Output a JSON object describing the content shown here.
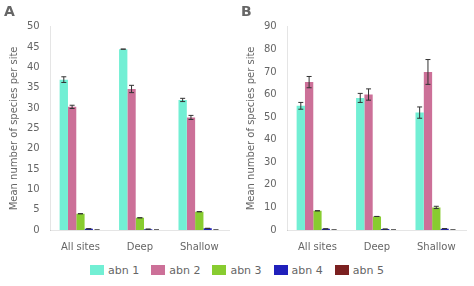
{
  "chart_data": [
    {
      "type": "bar",
      "title": "A",
      "categories": [
        "All sites",
        "Deep",
        "Shallow"
      ],
      "ylabel": "Mean number of species per site",
      "series": [
        {
          "name": "abn 1",
          "color": "#72EFD4",
          "values": [
            37.0,
            44.5,
            32.0
          ],
          "errors": [
            0.7,
            0.0,
            0.4
          ]
        },
        {
          "name": "abn 2",
          "color": "#CC7098",
          "values": [
            30.3,
            34.7,
            27.7
          ],
          "errors": [
            0.4,
            0.9,
            0.5
          ]
        },
        {
          "name": "abn 3",
          "color": "#88CC30",
          "values": [
            4.0,
            3.0,
            4.5
          ],
          "errors": [
            0.0,
            0.0,
            0.0
          ]
        },
        {
          "name": "abn 4",
          "color": "#2020BB",
          "values": [
            0.3,
            0.2,
            0.4
          ],
          "errors": [
            0.0,
            0.0,
            0.0
          ]
        },
        {
          "name": "abn 5",
          "color": "#7B2020",
          "values": [
            0.0,
            0.0,
            0.0
          ],
          "errors": [
            0.0,
            0.0,
            0.0
          ]
        }
      ],
      "ylim": [
        0,
        50
      ],
      "yticks": [
        0,
        5,
        10,
        15,
        20,
        25,
        30,
        35,
        40,
        45,
        50
      ],
      "grid": false,
      "legend": "bottom"
    },
    {
      "type": "bar",
      "title": "B",
      "categories": [
        "All sites",
        "Deep",
        "Shallow"
      ],
      "ylabel": "Mean number of species per site",
      "series": [
        {
          "name": "abn 1",
          "color": "#72EFD4",
          "values": [
            55.0,
            58.5,
            52.0
          ],
          "errors": [
            1.5,
            2.0,
            2.5
          ]
        },
        {
          "name": "abn 2",
          "color": "#CC7098",
          "values": [
            65.5,
            60.0,
            70.0
          ],
          "errors": [
            2.5,
            2.5,
            5.5
          ]
        },
        {
          "name": "abn 3",
          "color": "#88CC30",
          "values": [
            8.5,
            6.0,
            10.0
          ],
          "errors": [
            0.0,
            0.0,
            0.5
          ]
        },
        {
          "name": "abn 4",
          "color": "#2020BB",
          "values": [
            0.5,
            0.4,
            0.6
          ],
          "errors": [
            0.0,
            0.0,
            0.0
          ]
        },
        {
          "name": "abn 5",
          "color": "#7B2020",
          "values": [
            0.0,
            0.0,
            0.0
          ],
          "errors": [
            0.0,
            0.0,
            0.0
          ]
        }
      ],
      "ylim": [
        0,
        90
      ],
      "yticks": [
        0,
        10,
        20,
        30,
        40,
        50,
        60,
        70,
        80,
        90
      ],
      "grid": false,
      "legend": "bottom"
    }
  ]
}
